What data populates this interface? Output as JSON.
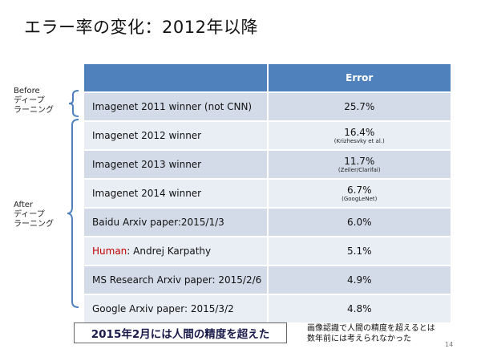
{
  "slide": {
    "title": "エラー率の変化：2012年以降",
    "page_number": "14"
  },
  "table": {
    "headers": [
      "",
      "Error"
    ],
    "rows": [
      {
        "name": "Imagenet 2011 winner (not CNN)",
        "error": "25.7%",
        "note": ""
      },
      {
        "name": "Imagenet 2012 winner",
        "error": "16.4%",
        "note": "(Krizhesvky et al.)"
      },
      {
        "name": "Imagenet 2013 winner",
        "error": "11.7%",
        "note": "(Zeiler/Clarifai)"
      },
      {
        "name": "Imagenet 2014 winner",
        "error": "6.7%",
        "note": "(GoogLeNet)"
      },
      {
        "name": "Baidu Arxiv paper:2015/1/3",
        "error": "6.0%",
        "note": ""
      },
      {
        "name_prefix": "Human",
        "name_rest": ": Andrej Karpathy",
        "error": "5.1%",
        "note": ""
      },
      {
        "name": "MS Research Arxiv paper: 2015/2/6",
        "error": "4.9%",
        "note": ""
      },
      {
        "name": "Google Arxiv paper: 2015/3/2",
        "error": "4.8%",
        "note": ""
      }
    ]
  },
  "labels": {
    "before": [
      "Before",
      "ディープ",
      "ラーニング"
    ],
    "after": [
      "After",
      "ディープ",
      "ラーニング"
    ]
  },
  "banner": "2015年2月には人間の精度を超えた",
  "note": [
    "画像認識で人間の精度を超えるとは",
    "数年前には考えられなかった"
  ],
  "colors": {
    "header_bg": "#4f81bd",
    "row_odd": "#d3dbe9",
    "row_even": "#e9edf4",
    "brace": "#4f81bd",
    "human": "#c00000"
  }
}
